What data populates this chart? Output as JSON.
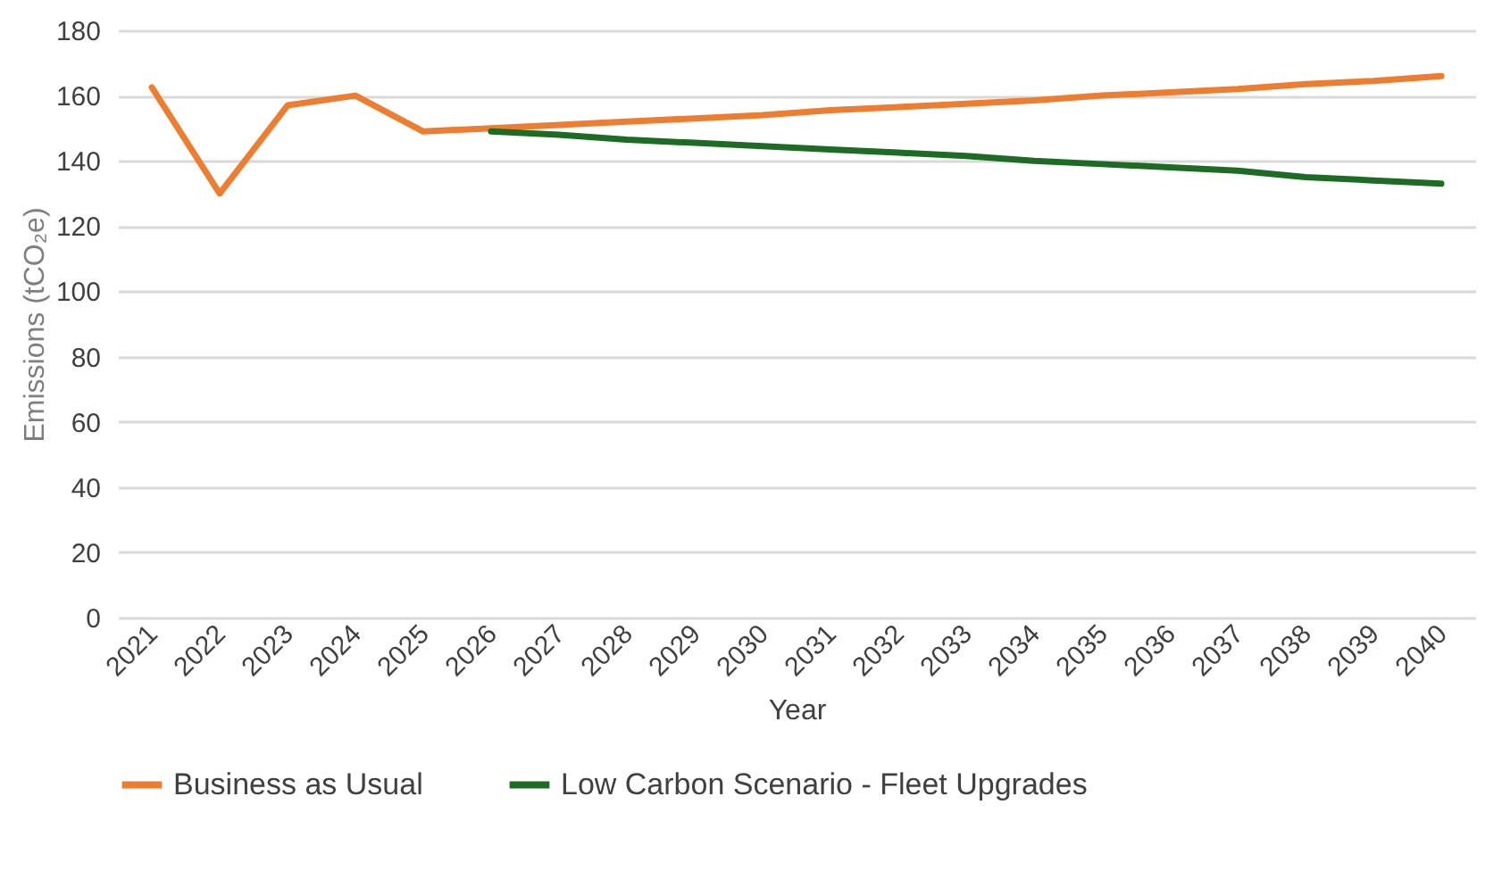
{
  "chart_data": {
    "type": "line",
    "xlabel": "Year",
    "ylabel": "Emissions (tCO₂e)",
    "categories": [
      "2021",
      "2022",
      "2023",
      "2024",
      "2025",
      "2026",
      "2027",
      "2028",
      "2029",
      "2030",
      "2031",
      "2032",
      "2033",
      "2034",
      "2035",
      "2036",
      "2037",
      "2038",
      "2039",
      "2040"
    ],
    "series": [
      {
        "name": "Business as Usual",
        "color": "#ed7d31",
        "values": [
          162.5,
          130,
          157,
          160,
          149,
          150,
          151,
          152,
          153,
          154,
          155.5,
          156.5,
          157.5,
          158.5,
          160,
          161,
          162,
          163.5,
          164.5,
          166
        ]
      },
      {
        "name": "Low Carbon Scenario - Fleet Upgrades",
        "color": "#1e6b25",
        "values": [
          null,
          null,
          null,
          null,
          null,
          149,
          148,
          146.5,
          145.5,
          144.5,
          143.5,
          142.5,
          141.5,
          140,
          139,
          138,
          137,
          135,
          134,
          133
        ]
      }
    ],
    "ylim": [
      0,
      180
    ],
    "yticks": [
      0,
      20,
      40,
      60,
      80,
      100,
      120,
      140,
      160,
      180
    ],
    "grid": "y",
    "legend": "bottom",
    "marker": "none",
    "line_style": "solid"
  }
}
